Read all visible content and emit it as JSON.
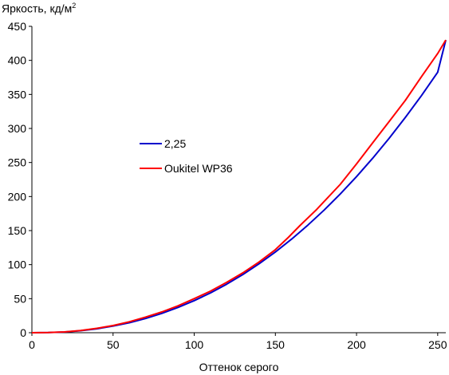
{
  "chart_data": {
    "type": "line",
    "ylabel": "Яркость, кд/м",
    "ylabel_sup": "2",
    "xlabel": "Оттенок серого",
    "xlim": [
      0,
      255
    ],
    "ylim": [
      0,
      450
    ],
    "xticks": [
      0,
      50,
      100,
      150,
      200,
      250
    ],
    "yticks": [
      0,
      50,
      100,
      150,
      200,
      250,
      300,
      350,
      400,
      450
    ],
    "grid": false,
    "legend_position": "left-center",
    "series": [
      {
        "name": "2,25",
        "color": "#0000cc",
        "x": [
          0,
          10,
          20,
          30,
          40,
          50,
          60,
          70,
          80,
          90,
          100,
          110,
          120,
          130,
          140,
          150,
          160,
          170,
          180,
          190,
          200,
          210,
          220,
          230,
          240,
          250,
          255
        ],
        "y": [
          0,
          0.2,
          1.1,
          2.9,
          5.8,
          9.7,
          14.7,
          20.9,
          28.4,
          37.1,
          47.1,
          58.5,
          71.3,
          85.6,
          101.3,
          118.6,
          137.5,
          158.0,
          180.1,
          203.8,
          229.3,
          256.4,
          285.3,
          315.9,
          348.3,
          382.5,
          430
        ]
      },
      {
        "name": "Oukitel WP36",
        "color": "#ff0000",
        "x": [
          0,
          10,
          20,
          30,
          40,
          50,
          60,
          70,
          80,
          90,
          100,
          110,
          120,
          130,
          140,
          150,
          158,
          165,
          175,
          190,
          200,
          210,
          220,
          230,
          240,
          250,
          255
        ],
        "y": [
          0,
          0.2,
          1.2,
          3.2,
          6.5,
          10.5,
          16,
          23,
          30.5,
          39.5,
          50,
          61,
          74,
          88,
          104,
          122,
          140,
          157,
          180,
          218,
          248,
          279,
          310,
          341,
          376,
          410,
          430
        ]
      }
    ]
  }
}
